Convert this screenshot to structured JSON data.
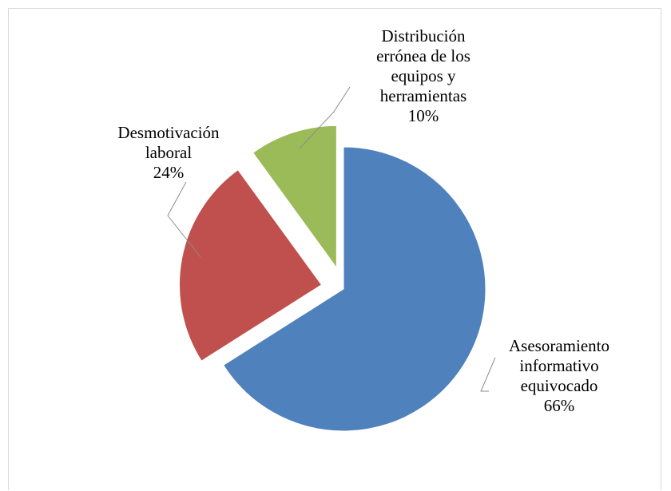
{
  "chart_data": {
    "type": "pie",
    "title": "",
    "slices": [
      {
        "label_lines": [
          "Asesoramiento",
          "informativo",
          "equivocado"
        ],
        "value": 66,
        "value_label": "66%",
        "color": "#4f81bd",
        "exploded": false
      },
      {
        "label_lines": [
          "Desmotivación",
          "laboral"
        ],
        "value": 24,
        "value_label": "24%",
        "color": "#c0504d",
        "exploded": true
      },
      {
        "label_lines": [
          "Distribución",
          "errónea de los",
          "equipos y",
          "herramientas"
        ],
        "value": 10,
        "value_label": "10%",
        "color": "#9bbb59",
        "exploded": true
      }
    ],
    "legend": "none",
    "start_angle": "12 o'clock, clockwise"
  }
}
